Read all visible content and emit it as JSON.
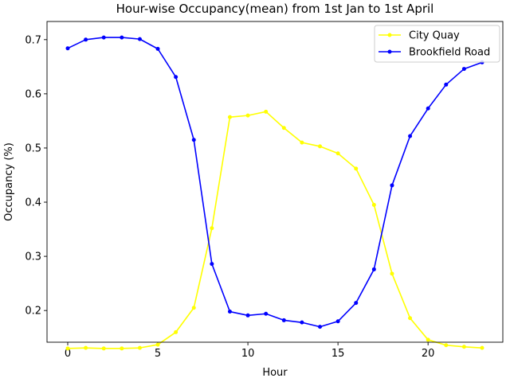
{
  "chart_data": {
    "type": "line",
    "title": "Hour-wise Occupancy(mean) from 1st Jan to 1st April",
    "xlabel": "Hour",
    "ylabel": "Occupancy (%)",
    "x": [
      0,
      1,
      2,
      3,
      4,
      5,
      6,
      7,
      8,
      9,
      10,
      11,
      12,
      13,
      14,
      15,
      16,
      17,
      18,
      19,
      20,
      21,
      22,
      23
    ],
    "xlim": [
      -1.15,
      24.15
    ],
    "ylim": [
      0.1415,
      0.7335
    ],
    "xticks": [
      0,
      5,
      10,
      15,
      20
    ],
    "xtick_labels": [
      "0",
      "5",
      "10",
      "15",
      "20"
    ],
    "yticks": [
      0.2,
      0.3,
      0.4,
      0.5,
      0.6,
      0.7
    ],
    "ytick_labels": [
      "0.2",
      "0.3",
      "0.4",
      "0.5",
      "0.6",
      "0.7"
    ],
    "grid": false,
    "legend_position": "top-right",
    "series": [
      {
        "name": "City Quay",
        "color": "#ffff00",
        "marker": "circle",
        "values": [
          0.13,
          0.131,
          0.13,
          0.13,
          0.131,
          0.137,
          0.16,
          0.205,
          0.352,
          0.557,
          0.56,
          0.567,
          0.537,
          0.51,
          0.503,
          0.49,
          0.462,
          0.395,
          0.268,
          0.186,
          0.146,
          0.136,
          0.133,
          0.131
        ]
      },
      {
        "name": "Brookfield Road",
        "color": "#0000ff",
        "marker": "circle",
        "values": [
          0.684,
          0.7,
          0.704,
          0.704,
          0.701,
          0.683,
          0.631,
          0.515,
          0.286,
          0.198,
          0.191,
          0.194,
          0.182,
          0.178,
          0.17,
          0.18,
          0.214,
          0.276,
          0.431,
          0.522,
          0.573,
          0.617,
          0.646,
          0.658
        ]
      }
    ]
  }
}
